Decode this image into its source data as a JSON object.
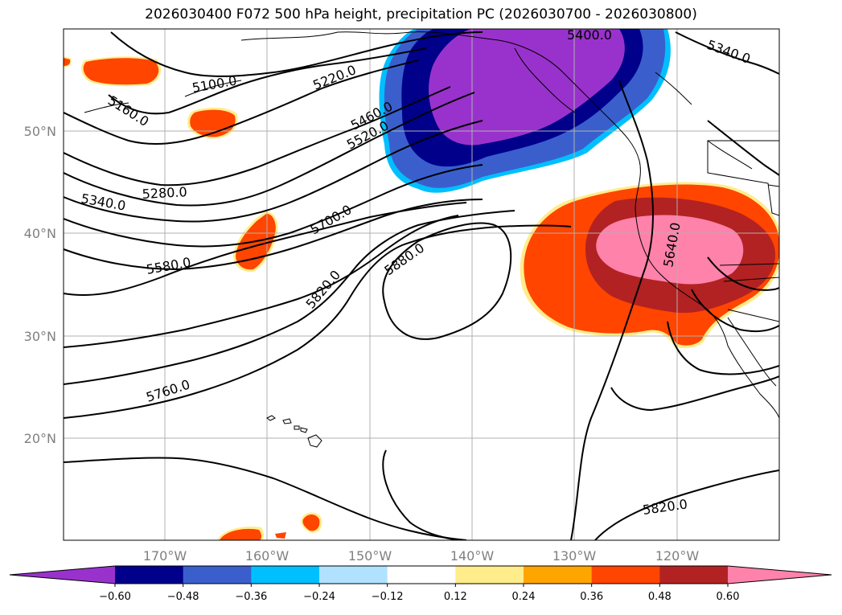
{
  "title": "2026030400 F072 500 hPa height, precipitation PC (2026030700 - 2026030800)",
  "map": {
    "lat_labels": [
      "50°N",
      "40°N",
      "30°N",
      "20°N"
    ],
    "lon_labels": [
      "170°W",
      "160°W",
      "150°W",
      "140°W",
      "130°W",
      "120°W"
    ],
    "contour_labels": [
      {
        "id": "c5400",
        "text": "5400.0"
      },
      {
        "id": "c5340a",
        "text": "5340.0"
      },
      {
        "id": "c5220",
        "text": "5220.0"
      },
      {
        "id": "c5100",
        "text": "5100.0"
      },
      {
        "id": "c5160",
        "text": "5160.0"
      },
      {
        "id": "c5460",
        "text": "5460.0"
      },
      {
        "id": "c5520",
        "text": "5520.0"
      },
      {
        "id": "c5340b",
        "text": "5340.0"
      },
      {
        "id": "c5280",
        "text": "5280.0"
      },
      {
        "id": "c5700",
        "text": "5700.0"
      },
      {
        "id": "c5580",
        "text": "5580.0"
      },
      {
        "id": "c5880",
        "text": "5880.0"
      },
      {
        "id": "c5820a",
        "text": "5820.0"
      },
      {
        "id": "c5640",
        "text": "5640.0"
      },
      {
        "id": "c5760",
        "text": "5760.0"
      },
      {
        "id": "c5820b",
        "text": "5820.0"
      }
    ]
  },
  "colorbar": {
    "colors": [
      "#9932cc",
      "#00008b",
      "#3a5fcd",
      "#00bfff",
      "#b0e2ff",
      "#ffffff",
      "#ffec8b",
      "#ffa500",
      "#ff4500",
      "#b22222",
      "#ff82ab"
    ],
    "ticks": [
      "−0.60",
      "−0.48",
      "−0.36",
      "−0.24",
      "−0.12",
      "0.12",
      "0.24",
      "0.36",
      "0.48",
      "0.60"
    ]
  }
}
